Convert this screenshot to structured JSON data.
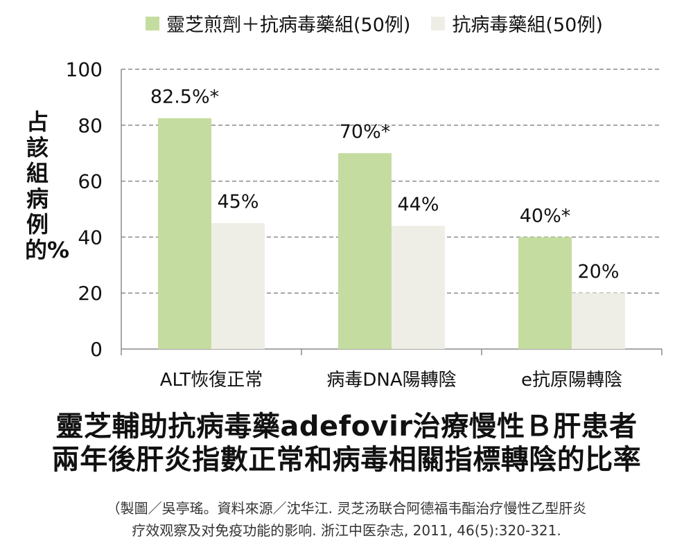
{
  "chart_data": {
    "type": "bar",
    "categories": [
      "ALT恢復正常",
      "病毒DNA陽轉陰",
      "e抗原陽轉陰"
    ],
    "series": [
      {
        "name": "靈芝煎劑＋抗病毒藥組(50例)",
        "values": [
          82.5,
          70,
          40
        ],
        "labels": [
          "82.5%*",
          "70%*",
          "40%*"
        ],
        "color": "#c5dca0"
      },
      {
        "name": "抗病毒藥組(50例)",
        "values": [
          45,
          44,
          20
        ],
        "labels": [
          "45%",
          "44%",
          "20%"
        ],
        "color": "#eeeee6"
      }
    ],
    "ylabel": "占該組病例的%",
    "ylim": [
      0,
      100
    ],
    "yticks": [
      0,
      20,
      40,
      60,
      80,
      100
    ],
    "grid": true,
    "legend_position": "top",
    "title": [
      "靈芝輔助抗病毒藥adefovir治療慢性Ｂ肝患者",
      "兩年後肝炎指數正常和病毒相關指標轉陰的比率"
    ],
    "source": [
      "（製圖／吳亭瑤。資料來源／沈华江. 灵芝汤联合阿德福韦酯治疗慢性乙型肝炎",
      "疗效观察及对免疫功能的影响. 浙江中医杂志, 2011, 46(5):320-321."
    ]
  }
}
